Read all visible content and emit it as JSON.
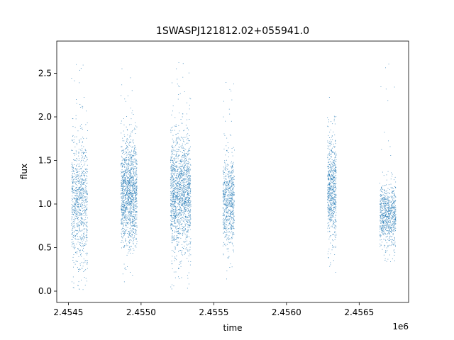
{
  "chart_data": {
    "type": "scatter",
    "title": "1SWASPJ121812.02+055941.0",
    "xlabel": "time",
    "ylabel": "flux",
    "x_offset_label": "1e6",
    "xlim": [
      2.45442,
      2.45684
    ],
    "ylim": [
      -0.13,
      2.87
    ],
    "xticks": [
      2.4545,
      2.455,
      2.4555,
      2.456,
      2.4565
    ],
    "xtick_labels": [
      "2.4545",
      "2.4550",
      "2.4555",
      "2.4560",
      "2.4565"
    ],
    "yticks": [
      0.0,
      0.5,
      1.0,
      1.5,
      2.0,
      2.5
    ],
    "ytick_labels": [
      "0.0",
      "0.5",
      "1.0",
      "1.5",
      "2.0",
      "2.5"
    ],
    "grid": false,
    "marker_color": "#1f77b4",
    "series": [
      {
        "points_by_season": [
          {
            "x_range": [
              2.45452,
              2.45463
            ],
            "flux_min": 0.02,
            "flux_max": 2.82,
            "flux_center": 1.05,
            "flux_spread": 0.38
          },
          {
            "x_range": [
              2.45486,
              2.45497
            ],
            "flux_min": 0.08,
            "flux_max": 2.66,
            "flux_center": 1.12,
            "flux_spread": 0.3
          },
          {
            "x_range": [
              2.4552,
              2.45534
            ],
            "flux_min": 0.0,
            "flux_max": 2.66,
            "flux_center": 1.12,
            "flux_spread": 0.32
          },
          {
            "x_range": [
              2.45556,
              2.45564
            ],
            "flux_min": 0.14,
            "flux_max": 2.42,
            "flux_center": 1.02,
            "flux_spread": 0.24
          },
          {
            "x_range": [
              2.45628,
              2.45634
            ],
            "flux_min": 0.21,
            "flux_max": 2.23,
            "flux_center": 1.18,
            "flux_spread": 0.28
          },
          {
            "x_range": [
              2.45664,
              2.45675
            ],
            "flux_min": 0.33,
            "flux_max": 2.82,
            "flux_center": 0.88,
            "flux_spread": 0.18
          }
        ]
      }
    ]
  }
}
